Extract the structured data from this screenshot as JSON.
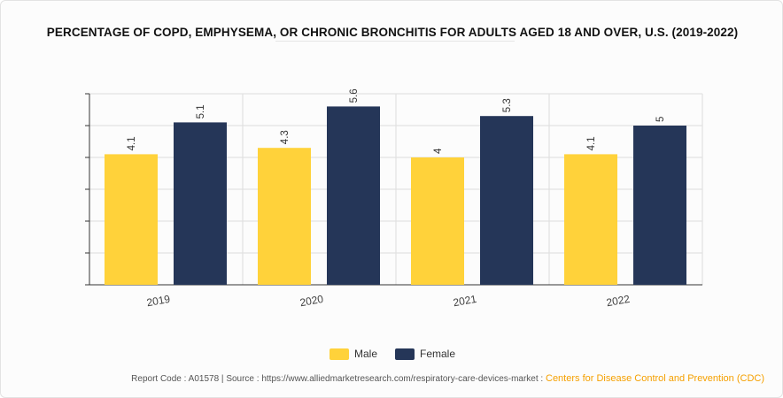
{
  "chart_data": {
    "type": "bar",
    "title": "PERCENTAGE OF COPD, EMPHYSEMA, OR CHRONIC BRONCHITIS FOR ADULTS AGED 18 AND OVER, U.S. (2019-2022)",
    "categories": [
      "2019",
      "2020",
      "2021",
      "2022"
    ],
    "series": [
      {
        "name": "Male",
        "values": [
          4.1,
          4.3,
          4,
          4.1
        ],
        "color": "#ffd23a"
      },
      {
        "name": "Female",
        "values": [
          5.1,
          5.6,
          5.3,
          5
        ],
        "color": "#253658"
      }
    ],
    "ylim": [
      0,
      6
    ],
    "yticks": [
      0,
      1,
      2,
      3,
      4,
      5,
      6
    ],
    "xlabel": "",
    "ylabel": "",
    "grid": true,
    "legend_position": "bottom-center",
    "axis_color": "#333333",
    "grid_color": "#dddddd"
  },
  "footer": {
    "report_code": "Report Code : A01578",
    "separator": "|",
    "source": "Source : https://www.alliedmarketresearch.com/respiratory-care-devices-market :",
    "source_org": "Centers for Disease Control and Prevention (CDC)"
  }
}
